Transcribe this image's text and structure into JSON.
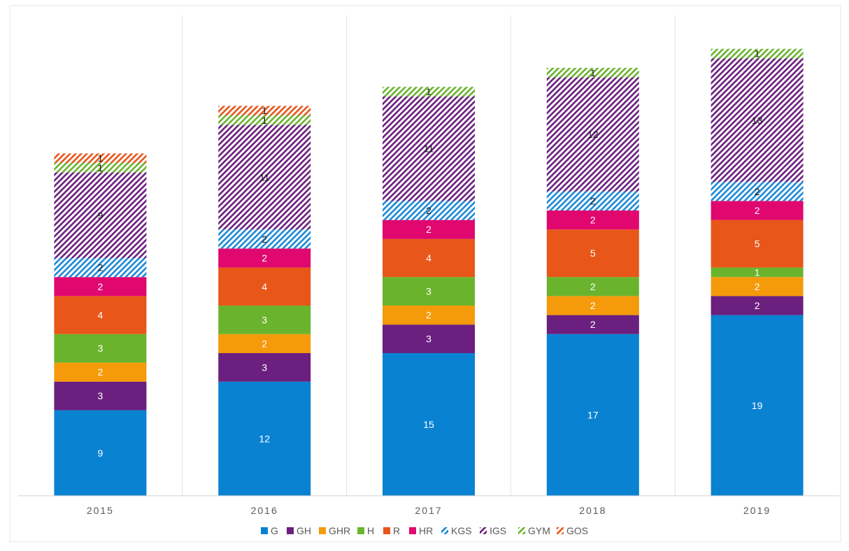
{
  "chart_data": {
    "type": "bar",
    "stacked": true,
    "categories": [
      "2015",
      "2016",
      "2017",
      "2018",
      "2019"
    ],
    "series": [
      {
        "name": "G",
        "color": "#0a82d2",
        "pattern": "solid",
        "values": [
          9,
          12,
          15,
          17,
          19
        ]
      },
      {
        "name": "GH",
        "color": "#6b1f7f",
        "pattern": "solid",
        "values": [
          3,
          3,
          3,
          2,
          2
        ]
      },
      {
        "name": "GHR",
        "color": "#f59a0a",
        "pattern": "solid",
        "values": [
          2,
          2,
          2,
          2,
          2
        ]
      },
      {
        "name": "H",
        "color": "#6ab42d",
        "pattern": "solid",
        "values": [
          3,
          3,
          3,
          2,
          1
        ]
      },
      {
        "name": "R",
        "color": "#e8561a",
        "pattern": "solid",
        "values": [
          4,
          4,
          4,
          5,
          5
        ]
      },
      {
        "name": "HR",
        "color": "#e0076f",
        "pattern": "solid",
        "values": [
          2,
          2,
          2,
          2,
          2
        ]
      },
      {
        "name": "KGS",
        "color": "#1a8ad8",
        "pattern": "hatched",
        "values": [
          2,
          2,
          2,
          2,
          2
        ]
      },
      {
        "name": "IGS",
        "color": "#6b1f7f",
        "pattern": "hatched",
        "values": [
          9,
          11,
          11,
          12,
          13
        ]
      },
      {
        "name": "GYM",
        "color": "#6ab42d",
        "pattern": "hatched",
        "values": [
          1,
          1,
          1,
          1,
          1
        ]
      },
      {
        "name": "GOS",
        "color": "#e8561a",
        "pattern": "hatched",
        "values": [
          1,
          1,
          null,
          null,
          null
        ]
      }
    ],
    "ylim": [
      0,
      47.5
    ],
    "grid": false,
    "legend_position": "bottom",
    "title": "",
    "xlabel": "",
    "ylabel": ""
  }
}
